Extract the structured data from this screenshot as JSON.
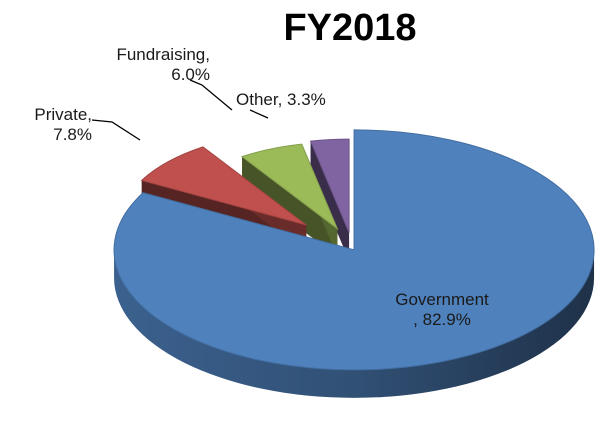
{
  "chart_data": {
    "type": "pie",
    "style": "3d-exploded",
    "title": "FY2018",
    "legend": "none",
    "slices": [
      {
        "name": "Government",
        "value": 82.9,
        "label_line1": "Government",
        "label_line2": ", 82.9%",
        "color": "#4F81BD"
      },
      {
        "name": "Private",
        "value": 7.8,
        "label_line1": "Private,",
        "label_line2": "7.8%",
        "color": "#C0504D"
      },
      {
        "name": "Fundraising",
        "value": 6.0,
        "label_line1": "Fundraising,",
        "label_line2": "6.0%",
        "color": "#9BBB59"
      },
      {
        "name": "Other",
        "value": 3.3,
        "label_line1": "Other, 3.3%",
        "label_line2": "",
        "color": "#8064A2"
      }
    ]
  }
}
